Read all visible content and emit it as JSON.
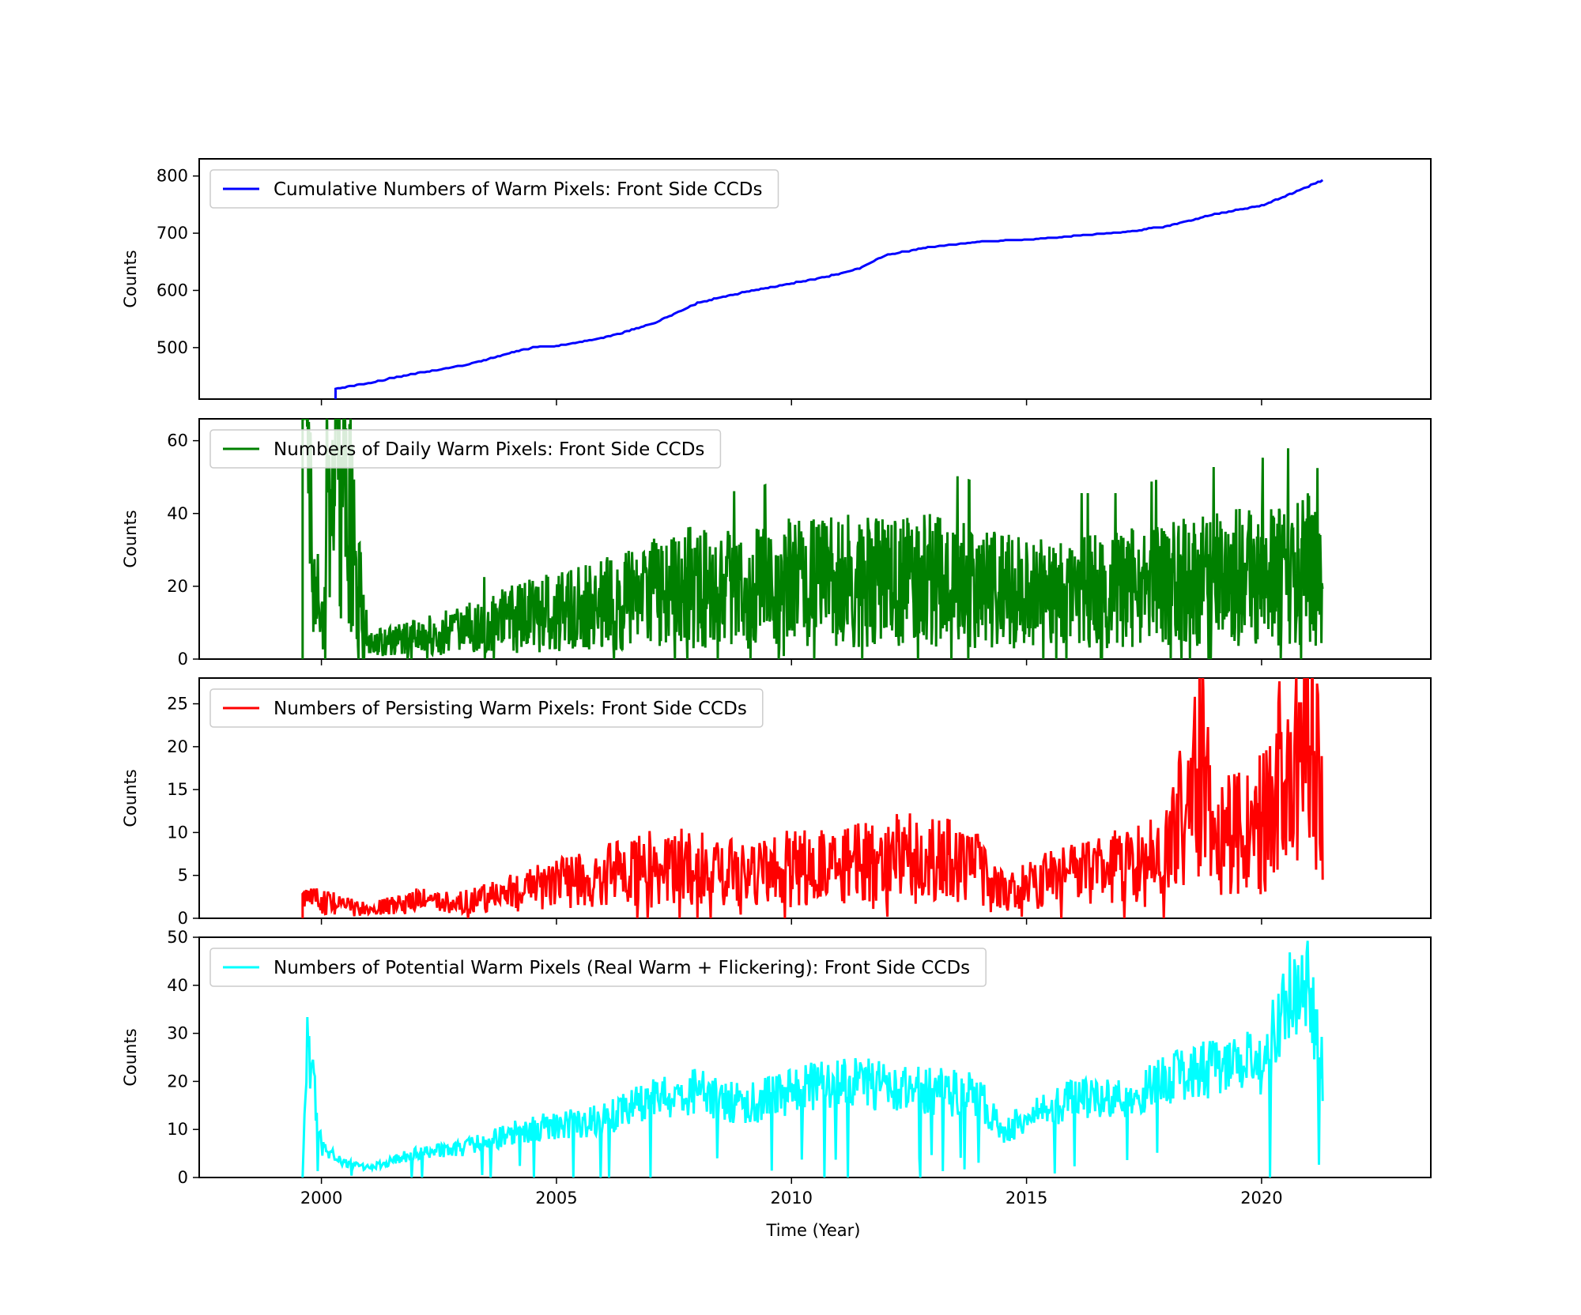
{
  "figure": {
    "xlabel": "Time (Year)",
    "x_ticks": [
      "2000",
      "2005",
      "2010",
      "2015",
      "2020"
    ]
  },
  "chart_data": [
    {
      "type": "line",
      "series": [
        {
          "name": "Cumulative Numbers of Warm Pixels: Front Side CCDs",
          "color": "#0000ff"
        }
      ],
      "ylabel": "Counts",
      "xlim": [
        1997.4,
        2023.6
      ],
      "ylim": [
        410,
        830
      ],
      "y_ticks": [
        500,
        600,
        700,
        800
      ],
      "grid": false,
      "legend": "top-left",
      "x": [
        2000.3,
        2001.0,
        2002.0,
        2003.0,
        2004.0,
        2004.5,
        2005.0,
        2006.0,
        2007.0,
        2008.0,
        2009.0,
        2010.0,
        2011.0,
        2011.5,
        2012.0,
        2013.0,
        2014.0,
        2015.0,
        2016.0,
        2017.0,
        2018.0,
        2019.0,
        2020.0,
        2020.8,
        2021.3
      ],
      "y": [
        428,
        438,
        455,
        468,
        490,
        500,
        503,
        517,
        540,
        578,
        597,
        612,
        628,
        640,
        662,
        676,
        685,
        688,
        695,
        701,
        712,
        733,
        748,
        775,
        793
      ]
    },
    {
      "type": "line",
      "series": [
        {
          "name": "Numbers of Daily Warm Pixels: Front Side CCDs",
          "color": "#008000"
        }
      ],
      "ylabel": "Counts",
      "xlim": [
        1997.4,
        2023.6
      ],
      "ylim": [
        0,
        66
      ],
      "y_ticks": [
        0,
        20,
        40,
        60
      ],
      "grid": false,
      "legend": "top-left",
      "x": [
        1999.6,
        2000.0,
        2000.3,
        2001.0,
        2002.0,
        2003.0,
        2004.0,
        2005.0,
        2006.0,
        2007.0,
        2008.0,
        2009.0,
        2010.0,
        2011.0,
        2012.0,
        2013.0,
        2014.0,
        2015.0,
        2016.0,
        2017.0,
        2018.0,
        2019.0,
        2020.0,
        2021.0,
        2021.3
      ],
      "y": [
        66,
        8,
        66,
        4,
        6,
        8,
        11,
        13,
        15,
        18,
        20,
        19,
        21,
        22,
        21,
        22,
        20,
        18,
        19,
        19,
        21,
        22,
        23,
        25,
        20
      ]
    },
    {
      "type": "line",
      "series": [
        {
          "name": "Numbers of Persisting Warm Pixels: Front Side CCDs",
          "color": "#ff0000"
        }
      ],
      "ylabel": "Counts",
      "xlim": [
        1997.4,
        2023.6
      ],
      "ylim": [
        0,
        28
      ],
      "y_ticks": [
        0,
        5,
        10,
        15,
        20,
        25
      ],
      "grid": false,
      "legend": "top-left",
      "x": [
        1999.6,
        2000.0,
        2001.0,
        2002.0,
        2003.0,
        2004.0,
        2005.0,
        2006.0,
        2007.0,
        2008.0,
        2009.0,
        2010.0,
        2011.0,
        2012.0,
        2013.0,
        2014.0,
        2014.5,
        2015.0,
        2016.0,
        2017.0,
        2018.0,
        2018.9,
        2019.0,
        2020.0,
        2021.0,
        2021.3
      ],
      "y": [
        2,
        2,
        1,
        2,
        2,
        3,
        4,
        5,
        6,
        6,
        5,
        6,
        6,
        7,
        7,
        6,
        3,
        4,
        5,
        6,
        8,
        20,
        9,
        11,
        24,
        12
      ]
    },
    {
      "type": "line",
      "series": [
        {
          "name": "Numbers of Potential Warm Pixels (Real Warm + Flickering): Front Side CCDs",
          "color": "#00ffff"
        }
      ],
      "ylabel": "Counts",
      "xlim": [
        1997.4,
        2023.6
      ],
      "ylim": [
        0,
        50
      ],
      "y_ticks": [
        0,
        10,
        20,
        30,
        40,
        50
      ],
      "grid": false,
      "legend": "top-left",
      "x": [
        1999.6,
        1999.7,
        2000.0,
        2000.5,
        2001.0,
        2002.0,
        2003.0,
        2004.0,
        2005.0,
        2006.0,
        2007.0,
        2008.0,
        2009.0,
        2010.0,
        2011.0,
        2012.0,
        2013.0,
        2014.0,
        2014.5,
        2015.0,
        2016.0,
        2017.0,
        2018.0,
        2019.0,
        2020.0,
        2020.9,
        2021.3
      ],
      "y": [
        0,
        29,
        6,
        3,
        2,
        5,
        6,
        9,
        11,
        12,
        16,
        18,
        15,
        18,
        20,
        19,
        18,
        17,
        9,
        13,
        16,
        16,
        20,
        23,
        24,
        44,
        22
      ]
    }
  ]
}
